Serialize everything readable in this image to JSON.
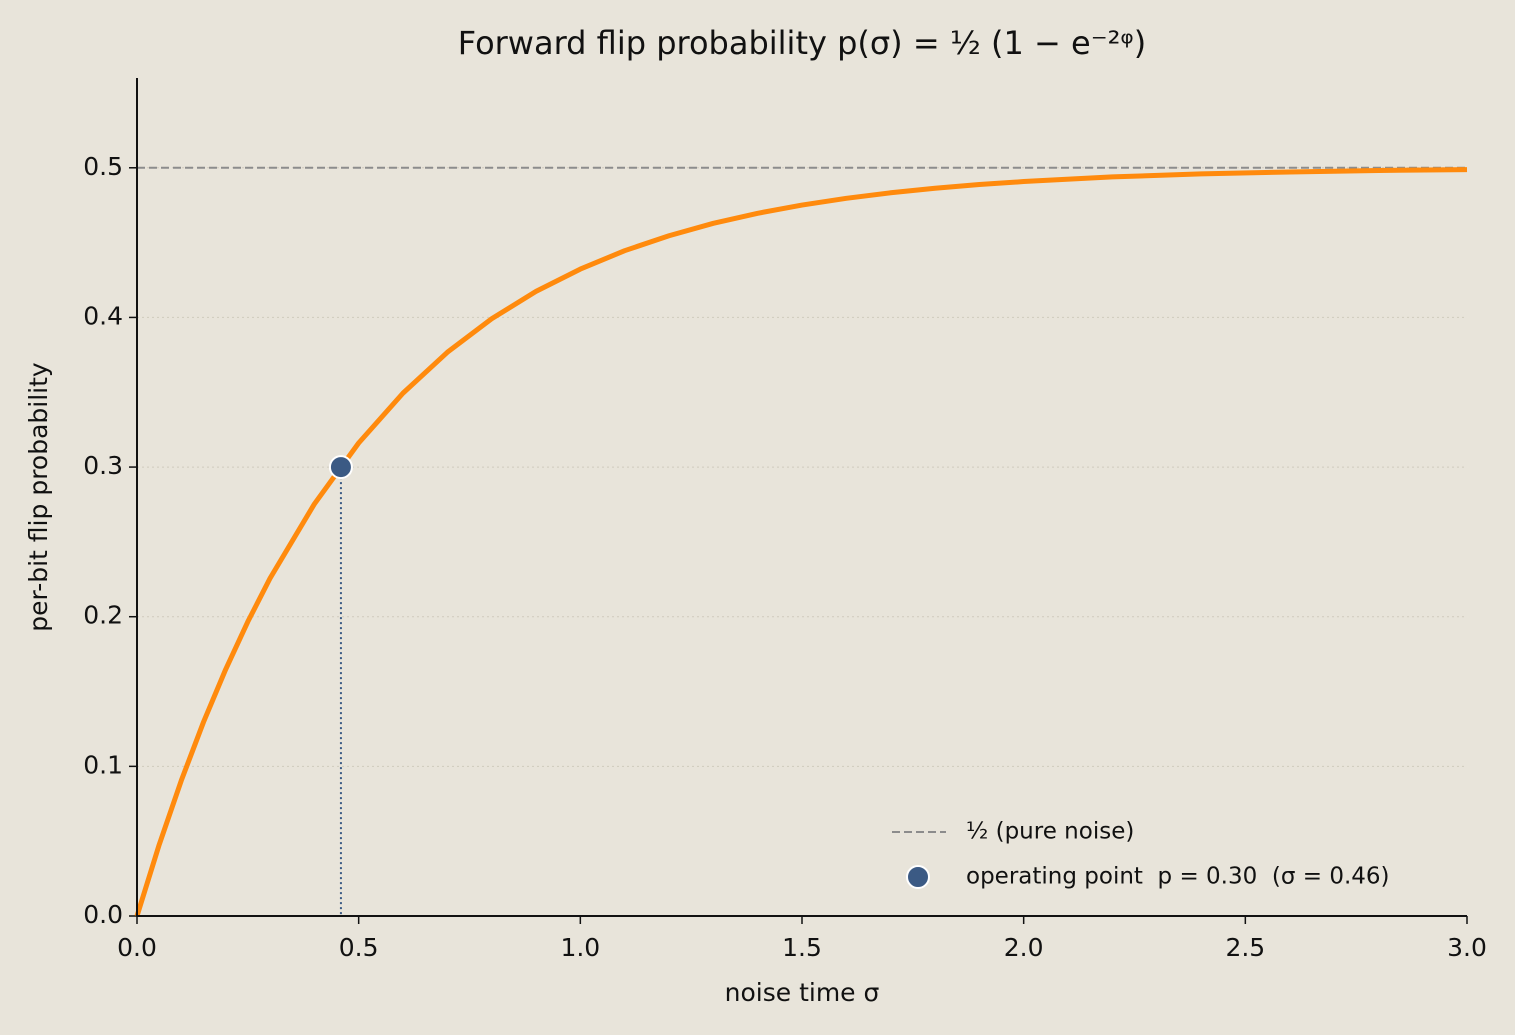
{
  "chart_data": {
    "type": "line",
    "title": "Forward flip probability p(σ) = ½ (1 − e⁻²ᵠ)",
    "x_label": "noise time σ",
    "y_label": "per-bit flip probability",
    "xlim": [
      0,
      3
    ],
    "ylim": [
      0,
      0.56
    ],
    "xticks": [
      {
        "value": 0,
        "label": "0.0"
      },
      0.5,
      {
        "value": 1,
        "label": "1.0"
      },
      1.5,
      {
        "value": 2,
        "label": "2.0"
      },
      2.5,
      {
        "value": 3,
        "label": "3.0"
      }
    ],
    "yticks": [
      {
        "value": 0,
        "label": "0.0"
      },
      0.1,
      0.2,
      0.3,
      0.4,
      0.5
    ],
    "grid": true,
    "series": [
      {
        "color": "#ff8a0d",
        "x": [
          0,
          0.05,
          0.1,
          0.15,
          0.2,
          0.25,
          0.3,
          0.4,
          0.5,
          0.6,
          0.7,
          0.8,
          0.9,
          1.0,
          1.1,
          1.2,
          1.3,
          1.4,
          1.5,
          1.6,
          1.7,
          1.8,
          1.9,
          2.0,
          2.2,
          2.4,
          2.6,
          2.8,
          3.0
        ],
        "values": [
          0,
          0.0476,
          0.0906,
          0.1296,
          0.1648,
          0.1967,
          0.2256,
          0.2753,
          0.3161,
          0.3494,
          0.3767,
          0.3991,
          0.4174,
          0.4323,
          0.4446,
          0.4546,
          0.4629,
          0.4696,
          0.4751,
          0.4796,
          0.4833,
          0.4863,
          0.4888,
          0.4908,
          0.4939,
          0.4959,
          0.4972,
          0.4982,
          0.4988
        ]
      }
    ],
    "reference_line": {
      "y": 0.5,
      "name": "½ (pure noise)",
      "color": "#8c8c8c"
    },
    "operating_point": {
      "x": 0.46,
      "y": 0.3,
      "name": "operating point  p = 0.30  (σ = 0.46)",
      "color": "#3b5a84"
    },
    "legend": "lower right"
  }
}
